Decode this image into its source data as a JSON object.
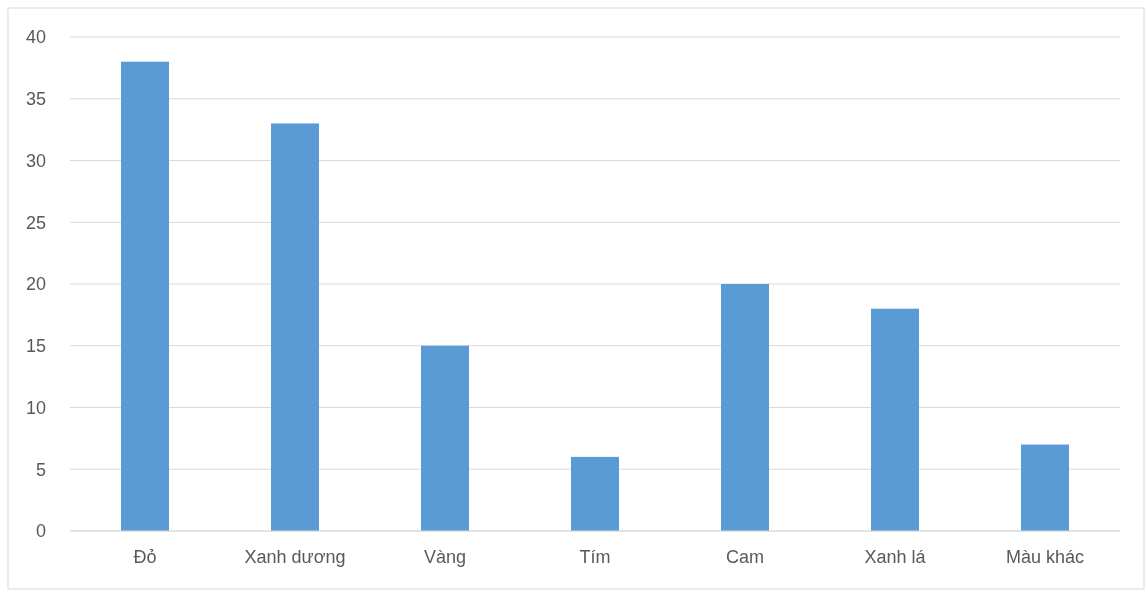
{
  "chart_data": {
    "type": "bar",
    "categories": [
      "Đỏ",
      "Xanh dương",
      "Vàng",
      "Tím",
      "Cam",
      "Xanh lá",
      "Màu khác"
    ],
    "values": [
      38,
      33,
      15,
      6,
      20,
      18,
      7
    ],
    "color": "#5b9bd5",
    "ylim": [
      0,
      40
    ],
    "yticks": [
      0,
      5,
      10,
      15,
      20,
      25,
      30,
      35,
      40
    ],
    "grid": "y"
  }
}
